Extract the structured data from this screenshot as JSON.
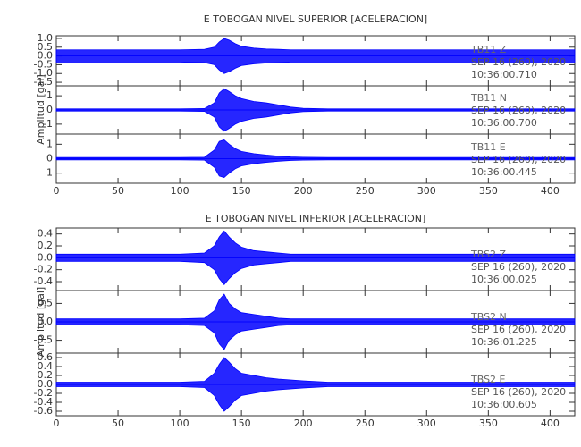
{
  "chart_data": [
    {
      "type": "area",
      "title": "E TOBOGAN NIVEL SUPERIOR [ACELERACION]",
      "y_label": "Amplitud [gal]",
      "x": [
        0,
        20,
        40,
        60,
        80,
        100,
        120,
        128,
        132,
        136,
        140,
        145,
        150,
        160,
        170,
        180,
        190,
        200,
        220,
        240,
        260,
        280,
        300,
        340,
        380,
        420
      ],
      "xlim": [
        0,
        420
      ],
      "xticks": [
        0,
        50,
        100,
        150,
        200,
        250,
        300,
        350,
        400
      ],
      "series": [
        {
          "name": "TB11   Z",
          "color": "#0000ff",
          "annotations": [
            "SEP 16 (260), 2020",
            "10:36:00.710"
          ],
          "ylim": [
            -1.7,
            1.15
          ],
          "yticks": [
            -1.5,
            {
              "value": -1,
              "label": "-1.0"
            },
            -0.5,
            {
              "value": 0,
              "label": "0.0"
            },
            0.5,
            {
              "value": 1,
              "label": "1.0"
            }
          ],
          "values": [
            0.35,
            0.35,
            0.35,
            0.35,
            0.35,
            0.35,
            0.38,
            0.5,
            0.8,
            1.0,
            0.9,
            0.7,
            0.55,
            0.45,
            0.4,
            0.38,
            0.35,
            0.35,
            0.35,
            0.35,
            0.35,
            0.35,
            0.35,
            0.35,
            0.35,
            0.35
          ]
        },
        {
          "name": "TB11   N",
          "color": "#0000ff",
          "annotations": [
            "SEP 16 (260), 2020",
            "10:36:00.700"
          ],
          "ylim": [
            -1.7,
            1.7
          ],
          "yticks": [
            -1,
            0,
            1
          ],
          "values": [
            0.08,
            0.08,
            0.08,
            0.08,
            0.08,
            0.08,
            0.1,
            0.5,
            1.2,
            1.5,
            1.3,
            1.0,
            0.8,
            0.6,
            0.5,
            0.35,
            0.2,
            0.12,
            0.08,
            0.08,
            0.08,
            0.08,
            0.08,
            0.08,
            0.08,
            0.08
          ]
        },
        {
          "name": "TB11   E",
          "color": "#0000ff",
          "annotations": [
            "SEP 16 (260), 2020",
            "10:36:00.445"
          ],
          "ylim": [
            -1.7,
            1.7
          ],
          "yticks": [
            -1,
            0,
            1
          ],
          "values": [
            0.08,
            0.08,
            0.08,
            0.08,
            0.08,
            0.08,
            0.1,
            0.6,
            1.2,
            1.3,
            1.0,
            0.7,
            0.5,
            0.35,
            0.25,
            0.18,
            0.12,
            0.1,
            0.08,
            0.08,
            0.08,
            0.08,
            0.08,
            0.08,
            0.08,
            0.08
          ]
        }
      ]
    },
    {
      "type": "area",
      "title": "E TOBOGAN NIVEL INFERIOR [ACELERACION]",
      "y_label": "Amplitud [gal]",
      "x": [
        0,
        20,
        40,
        60,
        80,
        100,
        120,
        128,
        132,
        136,
        140,
        145,
        150,
        160,
        170,
        180,
        190,
        200,
        220,
        240,
        260,
        280,
        300,
        340,
        380,
        420
      ],
      "xlim": [
        0,
        420
      ],
      "xticks": [
        0,
        50,
        100,
        150,
        200,
        250,
        300,
        350,
        400
      ],
      "series": [
        {
          "name": "TBS2   Z",
          "color": "#0000ff",
          "annotations": [
            "SEP 16 (260), 2020",
            "10:36:00.025"
          ],
          "ylim": [
            -0.55,
            0.5
          ],
          "yticks": [
            -0.4,
            -0.2,
            {
              "value": 0,
              "label": "0.0"
            },
            0.2,
            0.4
          ],
          "values": [
            0.06,
            0.06,
            0.06,
            0.06,
            0.06,
            0.06,
            0.08,
            0.2,
            0.35,
            0.45,
            0.35,
            0.25,
            0.18,
            0.12,
            0.1,
            0.08,
            0.06,
            0.06,
            0.06,
            0.06,
            0.06,
            0.06,
            0.06,
            0.06,
            0.06,
            0.06
          ]
        },
        {
          "name": "TBS2   N",
          "color": "#0000ff",
          "annotations": [
            "SEP 16 (260), 2020",
            "10:36:01.225"
          ],
          "ylim": [
            -0.85,
            0.85
          ],
          "yticks": [
            -0.5,
            {
              "value": 0,
              "label": "0.0"
            },
            0.5
          ],
          "values": [
            0.08,
            0.08,
            0.08,
            0.08,
            0.08,
            0.08,
            0.1,
            0.3,
            0.6,
            0.75,
            0.5,
            0.35,
            0.25,
            0.2,
            0.15,
            0.1,
            0.08,
            0.08,
            0.08,
            0.08,
            0.08,
            0.08,
            0.08,
            0.08,
            0.08,
            0.08
          ]
        },
        {
          "name": "TBS2   E",
          "color": "#0000ff",
          "annotations": [
            "SEP 16 (260), 2020",
            "10:36:00.605"
          ],
          "ylim": [
            -0.7,
            0.7
          ],
          "yticks": [
            -0.6,
            -0.4,
            -0.2,
            {
              "value": 0,
              "label": "0.0"
            },
            0.2,
            0.4,
            0.6
          ],
          "values": [
            0.05,
            0.05,
            0.05,
            0.05,
            0.05,
            0.05,
            0.07,
            0.25,
            0.45,
            0.6,
            0.5,
            0.35,
            0.25,
            0.2,
            0.15,
            0.12,
            0.1,
            0.08,
            0.05,
            0.05,
            0.05,
            0.05,
            0.05,
            0.05,
            0.05,
            0.05
          ]
        }
      ]
    }
  ]
}
